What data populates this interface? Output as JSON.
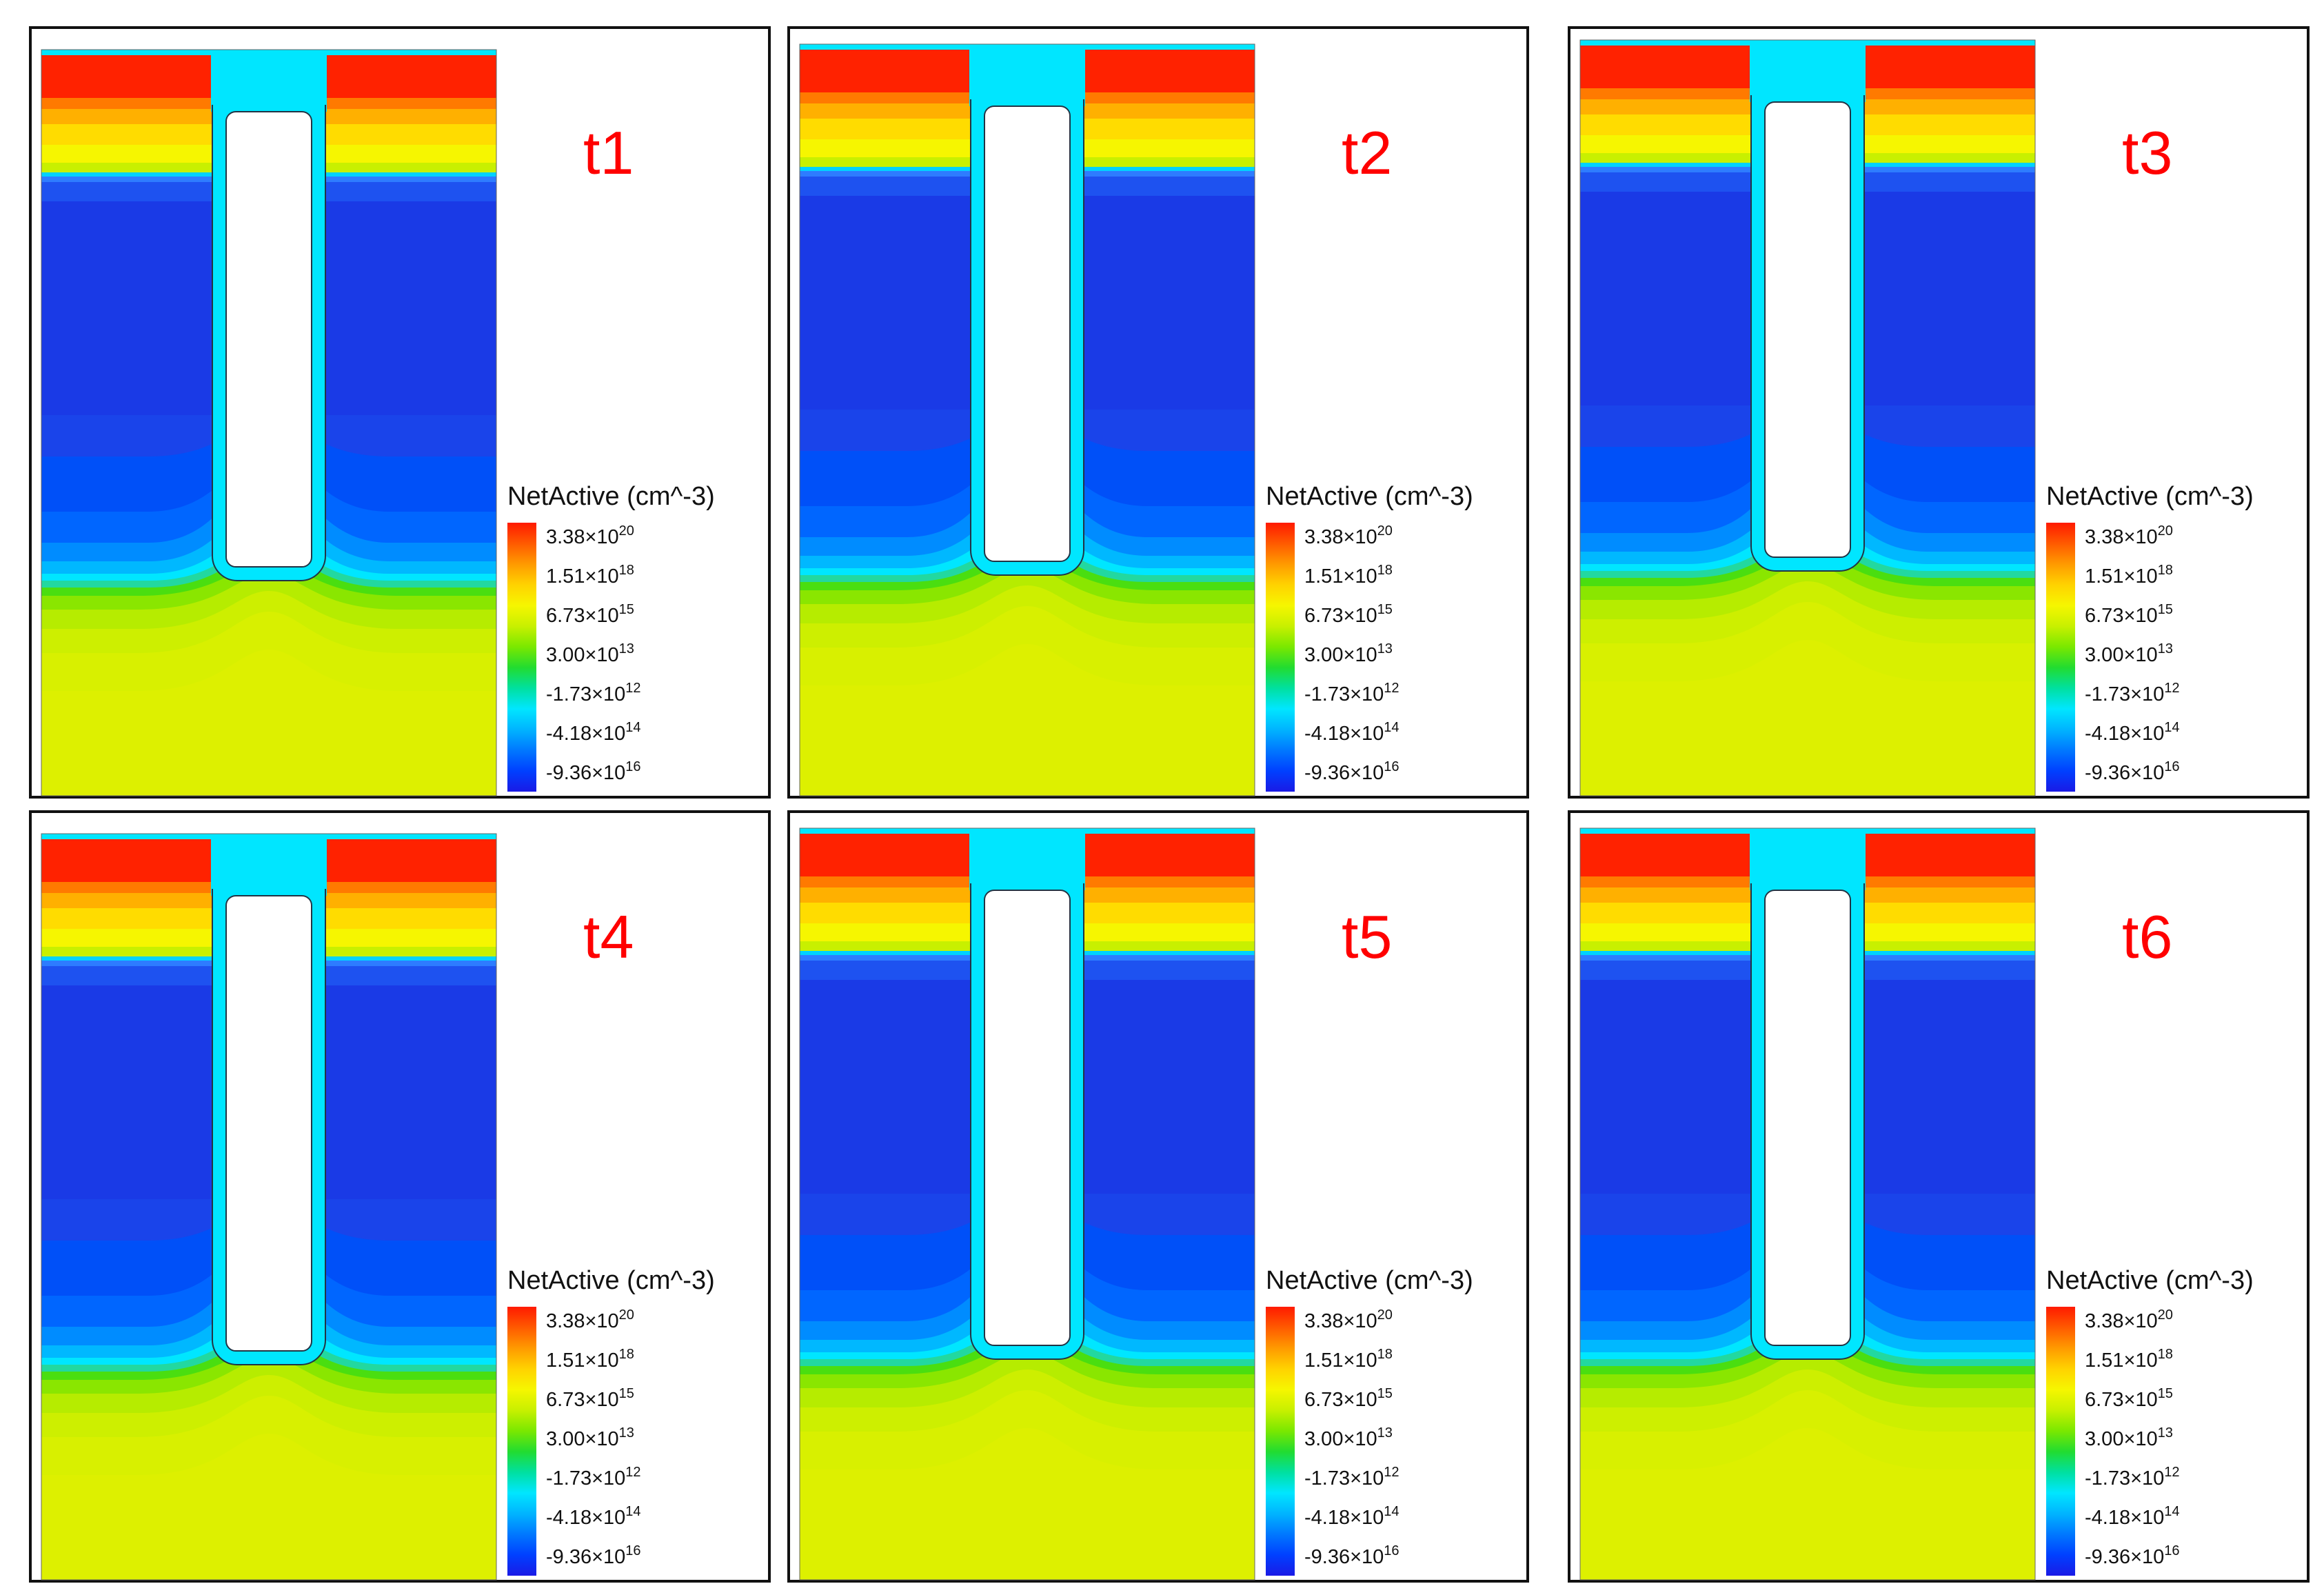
{
  "colors": {
    "n_plus": "#ff2200",
    "n_mid": "#ffa000",
    "n_light": "#f0f000",
    "substrate": "#ddf000",
    "substrate_dark": "#c8ee00",
    "green": "#3cdc00",
    "cyan": "#00e6ff",
    "p_light": "#0080ff",
    "p_mid": "#0050ff",
    "p_deep": "#1a3ae6",
    "trench_fill": "#ffffff",
    "time_label": "#ff0000",
    "frame": "#111111"
  },
  "legend": {
    "title": "NetActive (cm^-3)",
    "ticks": [
      {
        "mantissa": "3.38×10",
        "exponent": "20"
      },
      {
        "mantissa": "1.51×10",
        "exponent": "18"
      },
      {
        "mantissa": "6.73×10",
        "exponent": "15"
      },
      {
        "mantissa": "3.00×10",
        "exponent": "13"
      },
      {
        "mantissa": "-1.73×10",
        "exponent": "12"
      },
      {
        "mantissa": "-4.18×10",
        "exponent": "14"
      },
      {
        "mantissa": "-9.36×10",
        "exponent": "16"
      }
    ],
    "colorbar_stops": [
      "#ff1a00",
      "#ff5a00",
      "#ff9a00",
      "#ffd200",
      "#f6f600",
      "#c8f000",
      "#7ae800",
      "#22dc30",
      "#00e0a0",
      "#00e6ff",
      "#00b4ff",
      "#0078ff",
      "#0040ff",
      "#1a1ae6"
    ]
  },
  "panels": [
    {
      "label": "t1"
    },
    {
      "label": "t2"
    },
    {
      "label": "t3"
    },
    {
      "label": "t4"
    },
    {
      "label": "t5"
    },
    {
      "label": "t6"
    }
  ]
}
